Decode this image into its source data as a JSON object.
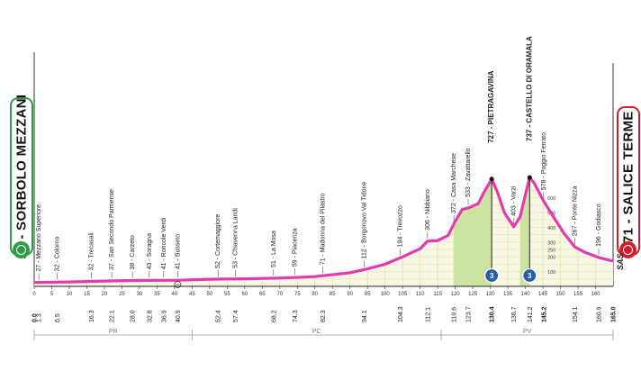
{
  "start": {
    "label": "26 - SORBOLO MEZZANI",
    "icon": "flag-start-icon",
    "color": "#2e9c46"
  },
  "finish": {
    "label": "171 - SALICE TERME",
    "icon": "flag-finish-icon",
    "color": "#d21f2a"
  },
  "sponsor": "SAS",
  "chart_data": {
    "type": "area",
    "x_unit": "km",
    "y_unit": "m",
    "xlim": [
      0,
      165
    ],
    "ylim": [
      0,
      700
    ],
    "total_km": 165.0,
    "x_ticks": [
      0,
      5,
      10,
      15,
      20,
      25,
      30,
      35,
      40,
      45,
      50,
      55,
      60,
      65,
      70,
      75,
      80,
      85,
      90,
      95,
      100,
      105,
      110,
      115,
      120,
      125,
      130,
      135,
      140,
      145,
      150,
      155,
      160
    ],
    "y_ticks": [
      100,
      200,
      250,
      300,
      400,
      500,
      600
    ],
    "profile": [
      {
        "x": 0,
        "y": 26
      },
      {
        "x": 10,
        "y": 30
      },
      {
        "x": 20,
        "y": 36
      },
      {
        "x": 30,
        "y": 40
      },
      {
        "x": 40,
        "y": 41
      },
      {
        "x": 50,
        "y": 48
      },
      {
        "x": 60,
        "y": 51
      },
      {
        "x": 70,
        "y": 56
      },
      {
        "x": 80,
        "y": 66
      },
      {
        "x": 90,
        "y": 92
      },
      {
        "x": 95,
        "y": 118
      },
      {
        "x": 100,
        "y": 150
      },
      {
        "x": 105,
        "y": 200
      },
      {
        "x": 110,
        "y": 255
      },
      {
        "x": 112.1,
        "y": 306
      },
      {
        "x": 115,
        "y": 310
      },
      {
        "x": 118,
        "y": 345
      },
      {
        "x": 120,
        "y": 440
      },
      {
        "x": 122,
        "y": 520
      },
      {
        "x": 124,
        "y": 533
      },
      {
        "x": 126.5,
        "y": 560
      },
      {
        "x": 128.5,
        "y": 650
      },
      {
        "x": 130.4,
        "y": 727
      },
      {
        "x": 132,
        "y": 640
      },
      {
        "x": 134,
        "y": 500
      },
      {
        "x": 136.7,
        "y": 403
      },
      {
        "x": 138.5,
        "y": 470
      },
      {
        "x": 140.2,
        "y": 640
      },
      {
        "x": 141.2,
        "y": 737
      },
      {
        "x": 142.5,
        "y": 700
      },
      {
        "x": 145.2,
        "y": 578
      },
      {
        "x": 148,
        "y": 470
      },
      {
        "x": 151,
        "y": 360
      },
      {
        "x": 154.1,
        "y": 267
      },
      {
        "x": 157,
        "y": 230
      },
      {
        "x": 160.9,
        "y": 196
      },
      {
        "x": 165,
        "y": 171
      }
    ],
    "climbs": [
      {
        "name": "PIETRAGAVINA",
        "km_start": 119.5,
        "km_end": 130.4,
        "category": "3",
        "summit_km": 130.4,
        "summit_alt": 727
      },
      {
        "name": "CASTELLO DI ORAMALA",
        "km_start": 138.5,
        "km_end": 141.2,
        "category": "3",
        "summit_km": 141.2,
        "summit_alt": 737
      }
    ],
    "intermediate_sprint": {
      "km": 40.9,
      "icon": "intermediate-sprint-icon"
    },
    "places": [
      {
        "km": 1.3,
        "label": "27 - Mezzano Superiore"
      },
      {
        "km": 6.5,
        "label": "32 - Colorno"
      },
      {
        "km": 16.3,
        "label": "32 - Trecasali"
      },
      {
        "km": 22.1,
        "label": "37 - San Secondo Parmense"
      },
      {
        "km": 28.0,
        "label": "38 - Carzeto"
      },
      {
        "km": 32.8,
        "label": "43 - Soragna"
      },
      {
        "km": 36.9,
        "label": "41 - Roncole Verdi"
      },
      {
        "km": 40.9,
        "label": "41 - Busseto"
      },
      {
        "km": 52.4,
        "label": "52 - Cortemaggiore"
      },
      {
        "km": 57.4,
        "label": "53 - Chiavenna Landi"
      },
      {
        "km": 68.2,
        "label": "51 - La Mosa"
      },
      {
        "km": 74.3,
        "label": "59 - Piacenza"
      },
      {
        "km": 82.3,
        "label": "71 - Madonna del Pilastro"
      },
      {
        "km": 94.1,
        "label": "112 - Borgonovo Val Tidone"
      },
      {
        "km": 104.3,
        "label": "194 - Trevozzo"
      },
      {
        "km": 112.1,
        "label": "306 - Nibbiano"
      },
      {
        "km": 119.6,
        "label": "372 - Casa Marchese"
      },
      {
        "km": 123.7,
        "label": "533 - Zavattarello"
      },
      {
        "km": 130.4,
        "label": "727 - PIETRAGAVINA",
        "major": true
      },
      {
        "km": 136.7,
        "label": "403 - Varzi"
      },
      {
        "km": 141.2,
        "label": "737 - CASTELLO DI ORAMALA",
        "major": true
      },
      {
        "km": 145.2,
        "label": "578 - Poggio Ferrato"
      },
      {
        "km": 154.1,
        "label": "267 - Ponte Nizza"
      },
      {
        "km": 160.9,
        "label": "196 - Godiasco"
      }
    ],
    "km_labels": [
      {
        "km": 0,
        "text": "0.0",
        "bold": true
      },
      {
        "km": 1.3,
        "text": "1.3"
      },
      {
        "km": 6.5,
        "text": "6.5"
      },
      {
        "km": 16.3,
        "text": "16.3"
      },
      {
        "km": 22.1,
        "text": "22.1"
      },
      {
        "km": 28.0,
        "text": "28.0"
      },
      {
        "km": 32.8,
        "text": "32.8"
      },
      {
        "km": 36.9,
        "text": "36.9"
      },
      {
        "km": 40.9,
        "text": "40.9"
      },
      {
        "km": 52.4,
        "text": "52.4"
      },
      {
        "km": 57.4,
        "text": "57.4"
      },
      {
        "km": 68.2,
        "text": "68.2"
      },
      {
        "km": 74.3,
        "text": "74.3"
      },
      {
        "km": 82.3,
        "text": "82.3"
      },
      {
        "km": 94.1,
        "text": "94.1"
      },
      {
        "km": 104.3,
        "text": "104.3"
      },
      {
        "km": 112.1,
        "text": "112.1"
      },
      {
        "km": 119.6,
        "text": "119.6"
      },
      {
        "km": 123.7,
        "text": "123.7"
      },
      {
        "km": 130.4,
        "text": "130.4",
        "bold": true
      },
      {
        "km": 136.7,
        "text": "136.7"
      },
      {
        "km": 141.2,
        "text": "141.2"
      },
      {
        "km": 145.2,
        "text": "145.2",
        "bold": true
      },
      {
        "km": 154.1,
        "text": "154.1"
      },
      {
        "km": 160.9,
        "text": "160.9"
      },
      {
        "km": 165.0,
        "text": "165.0",
        "bold": true
      }
    ],
    "provinces": [
      {
        "label": "PR",
        "km_start": 0,
        "km_end": 45
      },
      {
        "label": "PC",
        "km_start": 45,
        "km_end": 116
      },
      {
        "label": "PV",
        "km_start": 116,
        "km_end": 165
      }
    ],
    "colors": {
      "profile": "#e23bb0",
      "base": "#f8f7e4",
      "climb": "#c8e09a",
      "grid": "#e4e2b4"
    }
  }
}
